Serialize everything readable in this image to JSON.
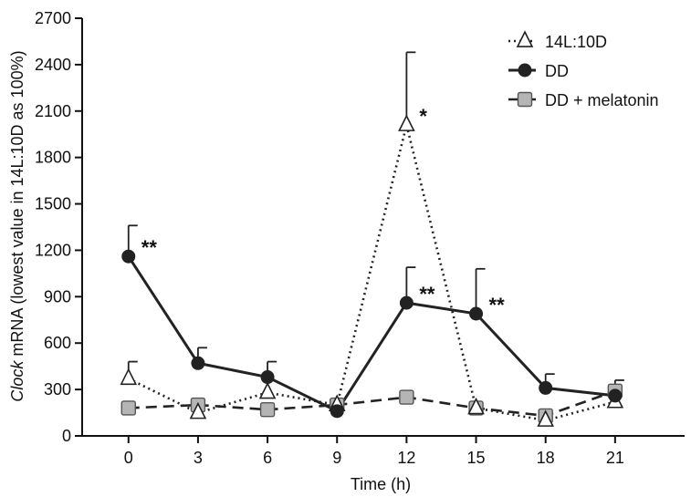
{
  "chart_data": {
    "type": "line",
    "xlabel": "Time (h)",
    "ylabel_italic": "Clock",
    "ylabel_rest": " mRNA (lowest value in 14L:10D as 100%)",
    "x": [
      0,
      3,
      6,
      9,
      12,
      15,
      18,
      21
    ],
    "xlim": [
      -2,
      24
    ],
    "ylim": [
      0,
      2700
    ],
    "yticks": [
      0,
      300,
      600,
      900,
      1200,
      1500,
      1800,
      2100,
      2400,
      2700
    ],
    "grid": false,
    "legend_position": "top-right",
    "series": [
      {
        "name": "14L:10D",
        "marker": "triangle-open",
        "line": "dotted",
        "values": [
          370,
          150,
          280,
          200,
          2010,
          180,
          100,
          220
        ],
        "error_upper": [
          480,
          null,
          null,
          null,
          2480,
          null,
          null,
          null
        ]
      },
      {
        "name": "DD",
        "marker": "circle-filled",
        "line": "solid",
        "values": [
          1160,
          470,
          380,
          160,
          860,
          790,
          310,
          260
        ],
        "error_upper": [
          1360,
          570,
          480,
          null,
          1090,
          1080,
          400,
          360
        ]
      },
      {
        "name": "DD + melatonin",
        "marker": "square-gray",
        "line": "dashed",
        "values": [
          180,
          200,
          170,
          200,
          250,
          180,
          130,
          290
        ],
        "error_upper": [
          null,
          null,
          null,
          null,
          null,
          null,
          null,
          null
        ]
      }
    ],
    "annotations": [
      {
        "text": "**",
        "x": 0,
        "y": 1160
      },
      {
        "text": "*",
        "x": 12,
        "y": 2010
      },
      {
        "text": "**",
        "x": 12,
        "y": 860
      },
      {
        "text": "**",
        "x": 15,
        "y": 790
      }
    ],
    "colors": {
      "axis": "#111111",
      "line": "#222222",
      "triangle_fill": "#ffffff",
      "circle_fill": "#222222",
      "square_fill": "#b5b5b5"
    }
  }
}
